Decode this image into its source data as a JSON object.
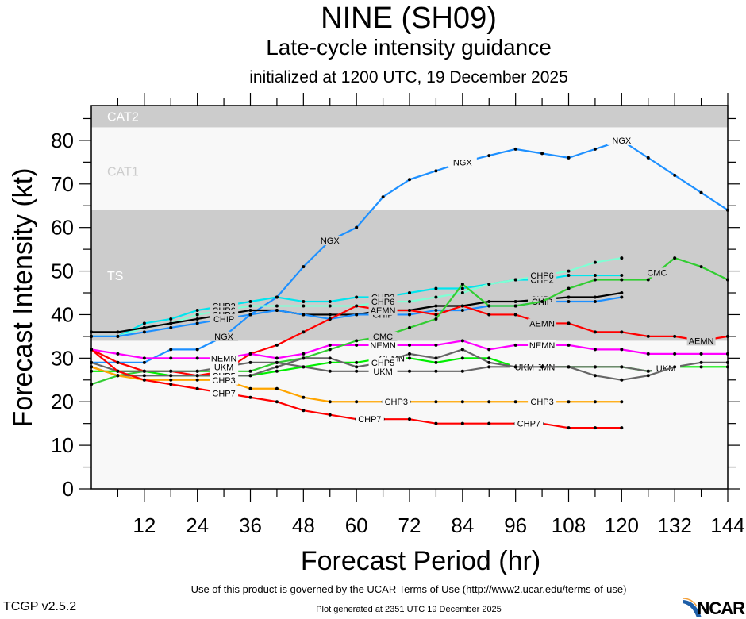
{
  "header": {
    "title": "NINE (SH09)",
    "subtitle": "Late-cycle intensity guidance",
    "init": "initialized at 1200 UTC, 19 December 2025"
  },
  "footer": {
    "terms": "Use of this product is governed by the UCAR Terms of Use (http://www2.ucar.edu/terms-of-use)",
    "version": "TCGP v2.5.2",
    "generated": "Plot generated at 2351 UTC   19 December 2025",
    "logo": "NCAR"
  },
  "chart_data": {
    "type": "line",
    "title": "NINE (SH09)",
    "xlabel": "Forecast Period (hr)",
    "ylabel": "Forecast Intensity (kt)",
    "xlim": [
      0,
      144
    ],
    "ylim": [
      0,
      88
    ],
    "xticks": [
      12,
      24,
      36,
      48,
      60,
      72,
      84,
      96,
      108,
      120,
      132,
      144
    ],
    "yticks": [
      0,
      10,
      20,
      30,
      40,
      50,
      60,
      70,
      80
    ],
    "grid": false,
    "bands": [
      {
        "label": "TS",
        "from": 34,
        "to": 64,
        "color": "#cccccc",
        "label_color": "#ffffff",
        "label_at": 49
      },
      {
        "label": "CAT1",
        "from": 64,
        "to": 83,
        "color": "#f8f8f8",
        "label_color": "#cccccc",
        "label_at": 73
      },
      {
        "label": "CAT2",
        "from": 83,
        "to": 88,
        "color": "#cccccc",
        "label_color": "#ffffff",
        "label_at": 85.5
      }
    ],
    "x": [
      0,
      6,
      12,
      18,
      24,
      30,
      36,
      42,
      48,
      54,
      60,
      66,
      72,
      78,
      84,
      90,
      96,
      102,
      108,
      114,
      120,
      126,
      132,
      138,
      144
    ],
    "series": [
      {
        "name": "NGX",
        "color": "#1e90ff",
        "labels_at": [
          30,
          54,
          84,
          120
        ],
        "values": [
          29,
          29,
          29,
          32,
          32,
          35,
          40,
          44,
          51,
          57,
          60,
          67,
          71,
          73,
          75,
          76.5,
          78,
          77,
          76,
          78,
          80,
          76,
          72,
          68,
          64
        ]
      },
      {
        "name": "CHP2",
        "color": "#00e5ee",
        "labels_at": [
          30,
          66,
          102
        ],
        "values": [
          35,
          35,
          38,
          39,
          41,
          42,
          43,
          44,
          43,
          43,
          44,
          44,
          45,
          46,
          46,
          47,
          48,
          48,
          49,
          49,
          49,
          null,
          null,
          null,
          null
        ]
      },
      {
        "name": "CHP6",
        "color": "#7fffd4",
        "labels_at": [
          30,
          66,
          102
        ],
        "values": [
          35,
          35,
          37,
          38,
          40,
          41,
          42,
          42,
          42,
          42,
          42,
          43,
          43,
          44,
          45,
          47,
          48,
          49,
          50,
          52,
          53,
          null,
          null,
          null,
          null
        ]
      },
      {
        "name": "CHP4",
        "color": "#000000",
        "labels_at": [
          30,
          66,
          102
        ],
        "values": [
          36,
          36,
          37,
          38,
          39,
          40,
          41,
          41,
          40,
          40,
          40,
          41,
          41,
          42,
          42,
          43,
          43,
          43.5,
          44,
          44,
          45,
          null,
          null,
          null,
          null
        ]
      },
      {
        "name": "CHIP",
        "color": "#1e90ff",
        "labels_at": [
          30,
          66,
          102
        ],
        "values": [
          35,
          35,
          36,
          37,
          38,
          39,
          40,
          41,
          40,
          39,
          40,
          40,
          40,
          41,
          41,
          42,
          42,
          43,
          43,
          43,
          44,
          null,
          null,
          null,
          null
        ]
      },
      {
        "name": "AEMN",
        "color": "#ff0000",
        "labels_at": [
          30,
          66,
          102,
          138
        ],
        "values": [
          32,
          29,
          27,
          27,
          26,
          27,
          31,
          33,
          36,
          39,
          42,
          41,
          41,
          40,
          42,
          40,
          40,
          38,
          38,
          36,
          36,
          35,
          35,
          34,
          35
        ]
      },
      {
        "name": "NEMN",
        "color": "#ff00ff",
        "labels_at": [
          30,
          66,
          102
        ],
        "values": [
          32,
          31,
          30,
          30,
          30,
          30,
          31,
          30,
          31,
          33,
          33,
          33,
          33,
          33,
          34,
          32,
          33,
          33,
          33,
          32,
          32,
          31,
          31,
          31,
          31
        ]
      },
      {
        "name": "CMC",
        "color": "#32cd32",
        "labels_at": [
          30,
          66,
          128
        ],
        "values": [
          24,
          26,
          27,
          27,
          27,
          27,
          27,
          29,
          30,
          32,
          34,
          35,
          37,
          39,
          47,
          42,
          42,
          43,
          46,
          48,
          48,
          48,
          53,
          51,
          48
        ]
      },
      {
        "name": "CEMN",
        "color": "#00ee00",
        "labels_at": [
          30,
          68,
          102
        ],
        "values": [
          27,
          27,
          27,
          26,
          26,
          26,
          26,
          27,
          28,
          29,
          29,
          30,
          30,
          29,
          30,
          30,
          28,
          28,
          28,
          28,
          28,
          27,
          28,
          28,
          28
        ]
      },
      {
        "name": "UKM",
        "color": "#666666",
        "labels_at": [
          30,
          66,
          98,
          130
        ],
        "values": [
          29,
          27,
          27,
          27,
          27,
          28,
          29,
          29,
          28,
          27,
          27,
          27,
          27,
          27,
          27,
          28,
          28,
          28,
          28,
          28,
          28,
          27,
          28,
          29,
          29
        ]
      },
      {
        "name": "CHP5",
        "color": "#666666",
        "labels_at": [
          30,
          66
        ],
        "values": [
          28,
          26,
          26,
          26,
          26,
          26,
          26,
          28,
          30,
          30,
          28,
          29,
          31,
          30,
          32,
          29,
          28,
          28,
          28,
          26,
          25,
          26,
          28,
          null,
          null
        ]
      },
      {
        "name": "CHP3",
        "color": "#ffa500",
        "labels_at": [
          30,
          69,
          102
        ],
        "values": [
          28,
          26,
          25,
          25,
          25,
          25,
          23,
          23,
          21,
          20,
          20,
          20,
          20,
          20,
          20,
          20,
          20,
          20,
          20,
          20,
          20,
          null,
          null,
          null,
          null
        ]
      },
      {
        "name": "CHP7",
        "color": "#ff0000",
        "labels_at": [
          30,
          63,
          99
        ],
        "values": [
          32,
          27,
          25,
          24,
          23,
          22,
          21,
          20,
          18,
          17,
          16,
          16,
          16,
          15,
          15,
          15,
          15,
          15,
          14,
          14,
          14,
          null,
          null,
          null,
          null
        ]
      }
    ]
  }
}
